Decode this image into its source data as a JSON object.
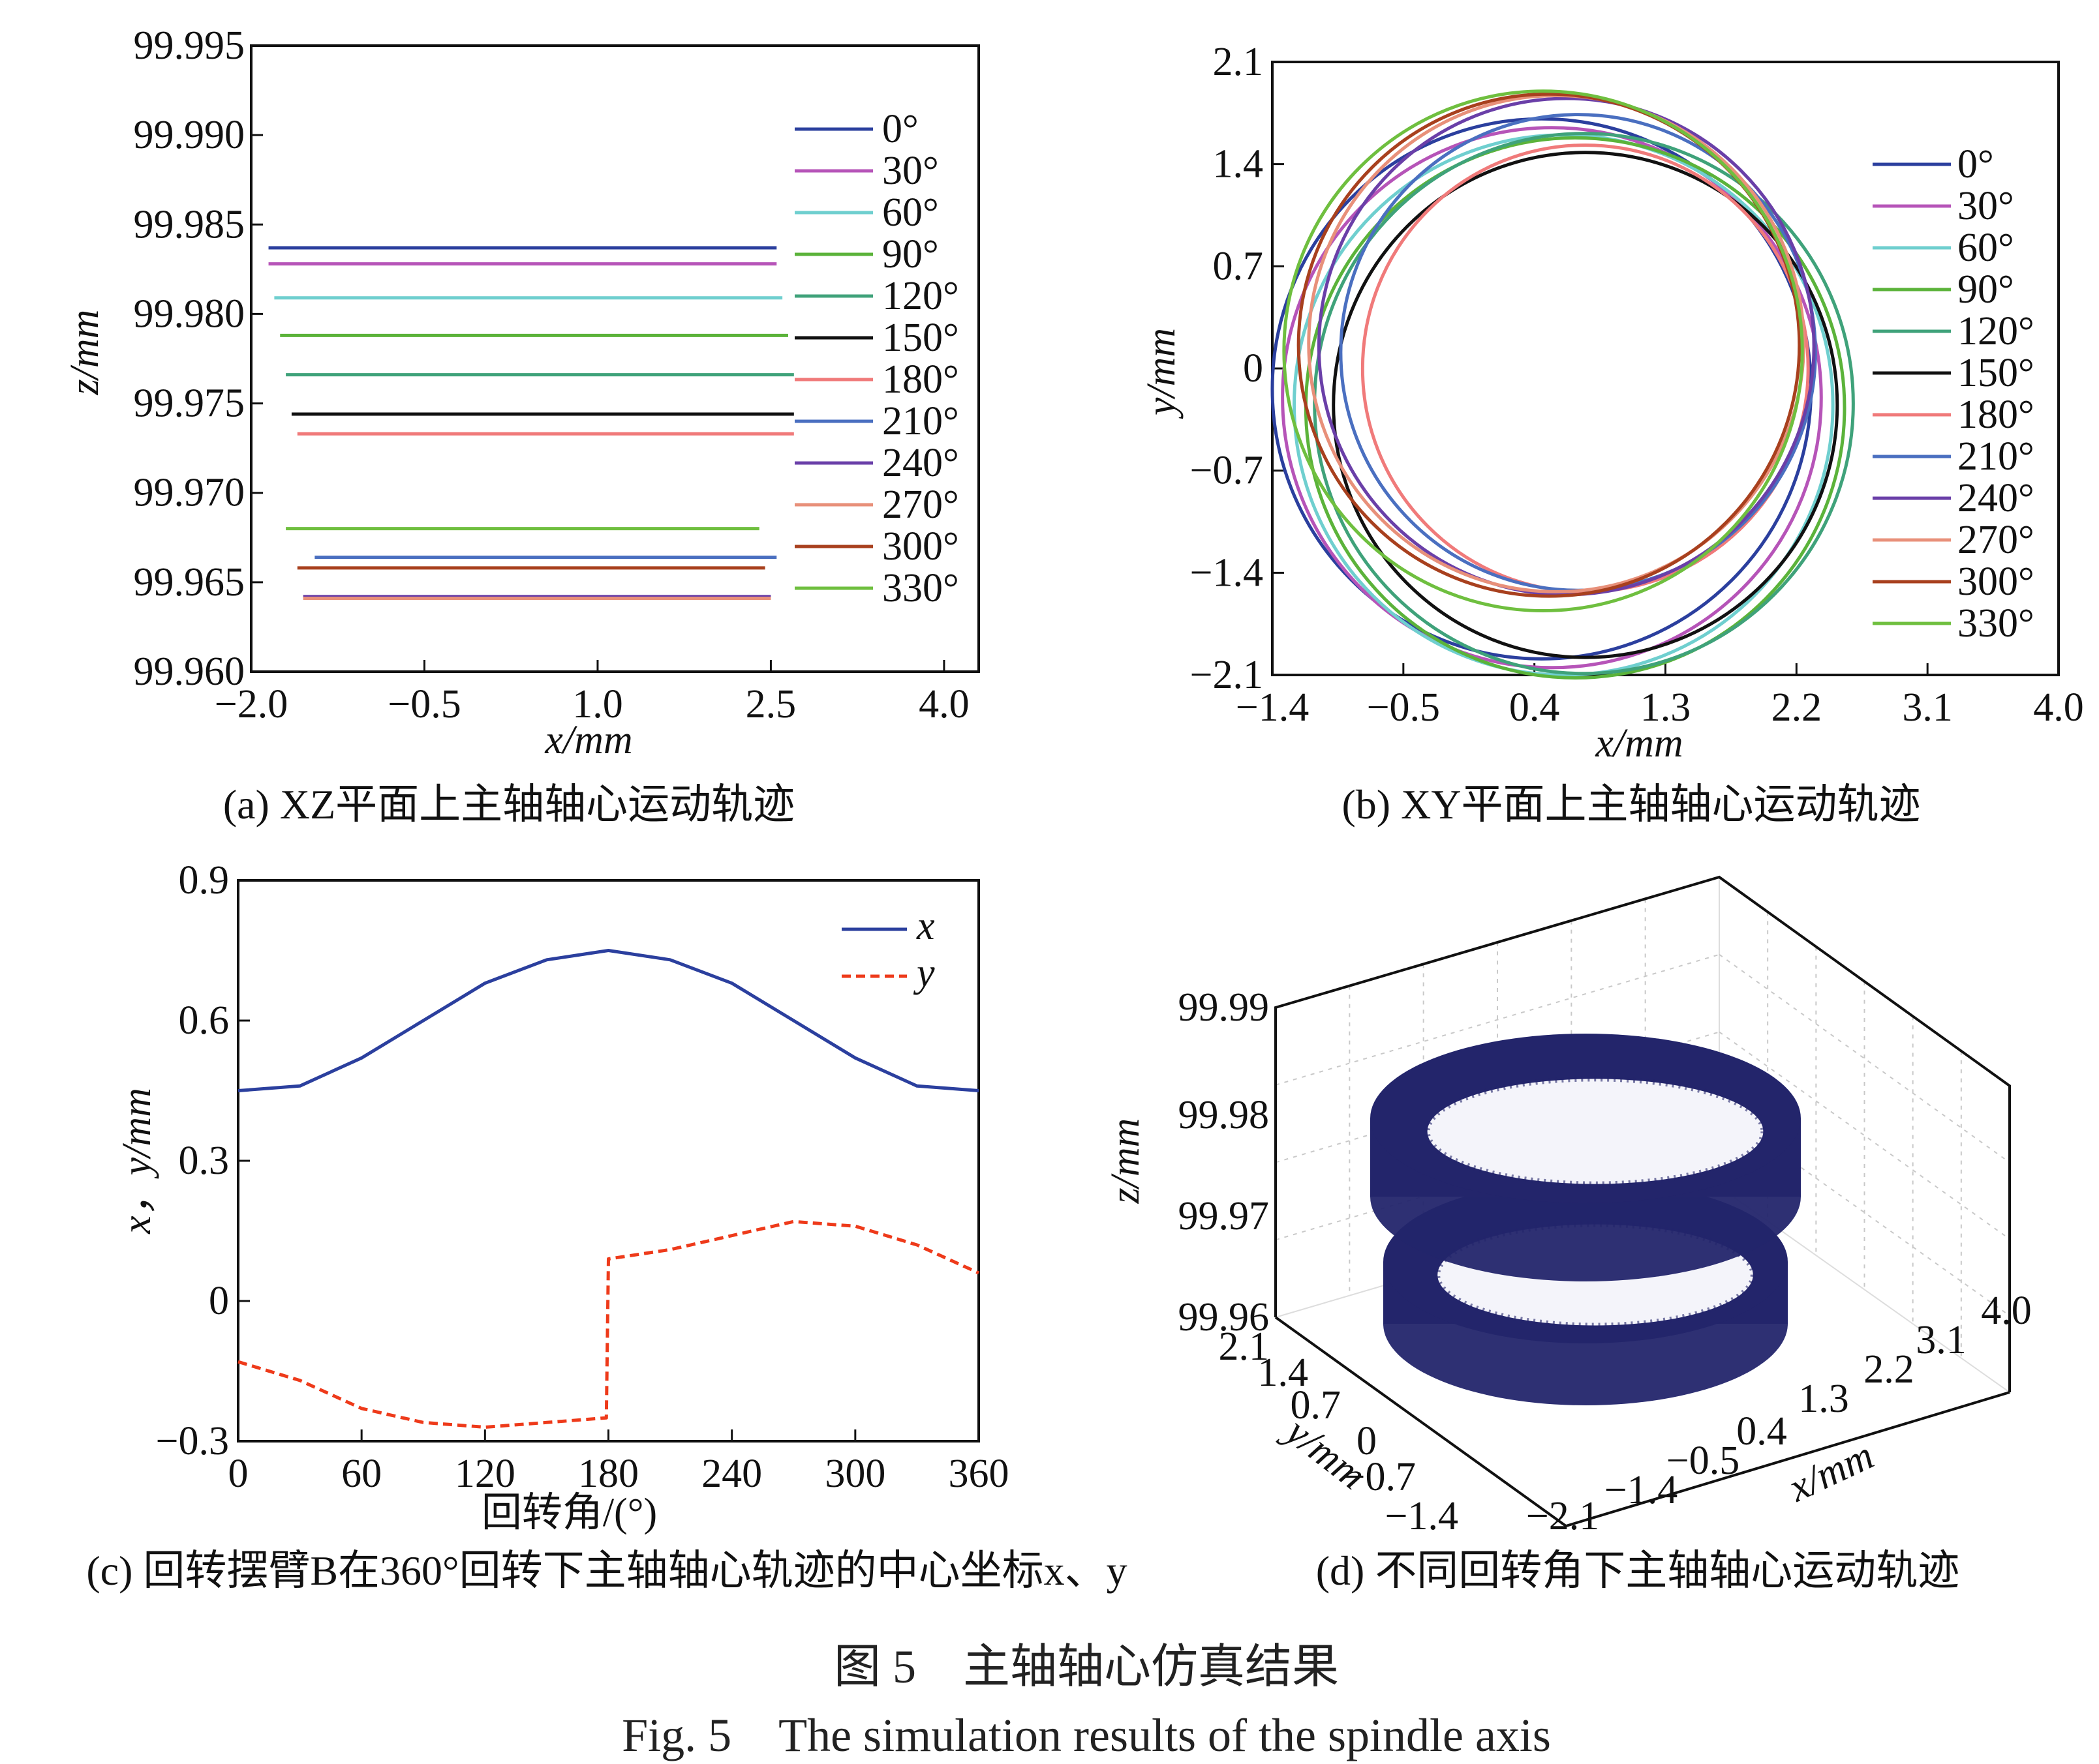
{
  "captions": {
    "a": "(a) XZ平面上主轴轴心运动轨迹",
    "b": "(b) XY平面上主轴轴心运动轨迹",
    "c": "(c) 回转摆臂B在360°回转下主轴轴心轨迹的中心坐标x、y",
    "d": "(d) 不同回转角下主轴轴心运动轨迹",
    "figure_cn": "图 5　主轴轴心仿真结果",
    "figure_en": "Fig. 5　The simulation results of the spindle axis"
  },
  "colors": {
    "0°": "#2b3f9e",
    "30°": "#b654b8",
    "60°": "#6fcfcf",
    "90°": "#5bb33a",
    "120°": "#3fa27a",
    "150°": "#111111",
    "180°": "#f07a7a",
    "210°": "#4a6fc0",
    "240°": "#6a3fa8",
    "270°": "#e8907a",
    "300°": "#a8401e",
    "330°": "#6fbf3f",
    "x": "#2b3f9e",
    "y": "#ee3a1a",
    "d3": "#23256b"
  },
  "chart_data": [
    {
      "type": "line",
      "panel": "a",
      "xlabel": "x/mm",
      "ylabel": "z/mm",
      "xlim": [
        -2.0,
        4.3
      ],
      "ylim": [
        99.96,
        99.995
      ],
      "xticks": [
        "−2.0",
        "−0.5",
        "1.0",
        "2.5",
        "4.0"
      ],
      "yticks": [
        "99.960",
        "99.965",
        "99.970",
        "99.975",
        "99.980",
        "99.985",
        "99.990",
        "99.995"
      ],
      "legend_position": "right",
      "series": [
        {
          "name": "0°",
          "z": 99.9837,
          "x": [
            -1.85,
            2.55
          ]
        },
        {
          "name": "30°",
          "z": 99.9828,
          "x": [
            -1.85,
            2.55
          ]
        },
        {
          "name": "60°",
          "z": 99.9809,
          "x": [
            -1.8,
            2.6
          ]
        },
        {
          "name": "90°",
          "z": 99.9788,
          "x": [
            -1.75,
            2.65
          ]
        },
        {
          "name": "120°",
          "z": 99.9766,
          "x": [
            -1.7,
            2.7
          ]
        },
        {
          "name": "150°",
          "z": 99.9744,
          "x": [
            -1.65,
            2.7
          ]
        },
        {
          "name": "180°",
          "z": 99.9733,
          "x": [
            -1.6,
            2.7
          ]
        },
        {
          "name": "210°",
          "z": 99.9664,
          "x": [
            -1.45,
            2.55
          ]
        },
        {
          "name": "240°",
          "z": 99.9642,
          "x": [
            -1.55,
            2.5
          ]
        },
        {
          "name": "270°",
          "z": 99.9641,
          "x": [
            -1.55,
            2.5
          ]
        },
        {
          "name": "300°",
          "z": 99.9658,
          "x": [
            -1.6,
            2.45
          ]
        },
        {
          "name": "330°",
          "z": 99.968,
          "x": [
            -1.7,
            2.4
          ]
        }
      ]
    },
    {
      "type": "line",
      "panel": "b",
      "xlabel": "x/mm",
      "ylabel": "y/mm",
      "xlim": [
        -1.4,
        4.0
      ],
      "ylim": [
        -2.1,
        2.1
      ],
      "xticks": [
        "−1.4",
        "−0.5",
        "0.4",
        "1.3",
        "2.2",
        "3.1",
        "4.0"
      ],
      "yticks": [
        "−2.1",
        "−1.4",
        "−0.7",
        "0",
        "0.7",
        "1.4",
        "2.1"
      ],
      "legend_position": "right",
      "series": [
        {
          "name": "0°",
          "cx": 0.45,
          "cy": -0.14,
          "r": 1.85
        },
        {
          "name": "30°",
          "cx": 0.52,
          "cy": -0.2,
          "r": 1.85
        },
        {
          "name": "60°",
          "cx": 0.6,
          "cy": -0.25,
          "r": 1.85
        },
        {
          "name": "90°",
          "cx": 0.68,
          "cy": -0.27,
          "r": 1.85
        },
        {
          "name": "120°",
          "cx": 0.74,
          "cy": -0.24,
          "r": 1.85
        },
        {
          "name": "150°",
          "cx": 0.75,
          "cy": -0.25,
          "r": 1.73
        },
        {
          "name": "180°",
          "cx": 0.75,
          "cy": -0.0,
          "r": 1.53
        },
        {
          "name": "210°",
          "cx": 0.7,
          "cy": 0.11,
          "r": 1.63
        },
        {
          "name": "240°",
          "cx": 0.62,
          "cy": 0.15,
          "r": 1.7
        },
        {
          "name": "270°",
          "cx": 0.55,
          "cy": 0.17,
          "r": 1.7
        },
        {
          "name": "300°",
          "cx": 0.5,
          "cy": 0.16,
          "r": 1.72
        },
        {
          "name": "330°",
          "cx": 0.46,
          "cy": 0.12,
          "r": 1.78
        }
      ]
    },
    {
      "type": "line",
      "panel": "c",
      "xlabel": "回转角/(°)",
      "ylabel": "x，y/mm",
      "xlim": [
        0,
        360
      ],
      "ylim": [
        -0.3,
        0.9
      ],
      "xticks": [
        "0",
        "60",
        "120",
        "180",
        "240",
        "300",
        "360"
      ],
      "yticks": [
        "−0.3",
        "0",
        "0.3",
        "0.6",
        "0.9"
      ],
      "legend_position": "top-right",
      "series": [
        {
          "name": "x",
          "x": [
            0,
            30,
            60,
            90,
            120,
            150,
            180,
            210,
            240,
            270,
            300,
            330,
            360
          ],
          "y": [
            0.45,
            0.46,
            0.52,
            0.6,
            0.68,
            0.73,
            0.75,
            0.73,
            0.68,
            0.6,
            0.52,
            0.46,
            0.45
          ]
        },
        {
          "name": "y",
          "x": [
            0,
            30,
            60,
            90,
            120,
            150,
            179,
            180,
            210,
            240,
            270,
            300,
            330,
            360
          ],
          "y": [
            -0.13,
            -0.17,
            -0.23,
            -0.26,
            -0.27,
            -0.26,
            -0.25,
            0.09,
            0.11,
            0.14,
            0.17,
            0.16,
            0.12,
            0.06
          ]
        }
      ]
    },
    {
      "type": "scatter",
      "panel": "d",
      "xlabel": "x/mm",
      "ylabel": "y/mm",
      "zlabel": "z/mm",
      "zticks": [
        "99.96",
        "99.97",
        "99.98",
        "99.99"
      ],
      "yticks": [
        "−1.4",
        "−0.7",
        "0",
        "0.7",
        "1.4",
        "2.1"
      ],
      "xticks": [
        "−1.4",
        "−0.5",
        "0.4",
        "1.3",
        "2.2",
        "3.1",
        "4.0"
      ],
      "extra_tick": "−2.1",
      "rings": [
        {
          "z": 99.9815,
          "note": "upper ring"
        },
        {
          "z": 99.9655,
          "note": "lower ring"
        }
      ]
    }
  ]
}
